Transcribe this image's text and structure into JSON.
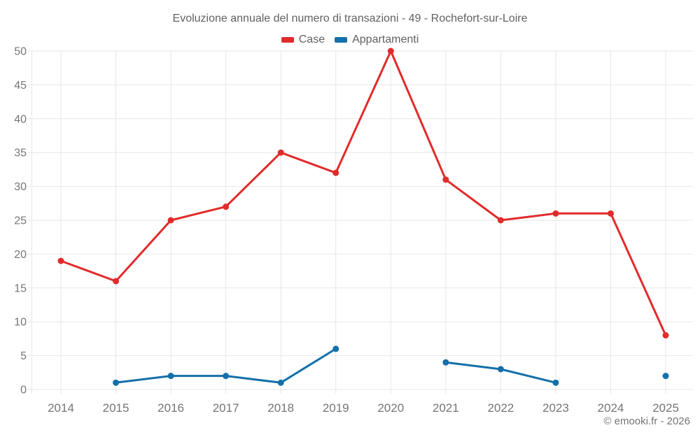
{
  "header": {
    "title": "Evoluzione annuale del numero di transazioni - 49 - Rochefort-sur-Loire"
  },
  "footer": {
    "credit": "© emooki.fr - 2026"
  },
  "colors": {
    "case_red": "#e12b2b",
    "appartamenti_blue": "#1470a8",
    "grid": "#e6e6e6",
    "tick_text": "#757575",
    "title_text": "#616161"
  },
  "chart_data": {
    "type": "line",
    "title": "Evoluzione annuale del numero di transazioni - 49 - Rochefort-sur-Loire",
    "categories": [
      "2014",
      "2015",
      "2016",
      "2017",
      "2018",
      "2019",
      "2020",
      "2021",
      "2022",
      "2023",
      "2024",
      "2025"
    ],
    "series": [
      {
        "name": "Case",
        "color": "#e12b2b",
        "values": [
          19,
          16,
          25,
          27,
          35,
          32,
          50,
          31,
          25,
          26,
          26,
          8
        ]
      },
      {
        "name": "Appartamenti",
        "color": "#1470a8",
        "values": [
          null,
          1,
          2,
          2,
          1,
          6,
          null,
          4,
          3,
          1,
          null,
          2
        ]
      }
    ],
    "xlabel": "",
    "ylabel": "",
    "ylim": [
      0,
      50
    ],
    "ytick_step": 5,
    "grid": true,
    "legend_position": "top"
  }
}
